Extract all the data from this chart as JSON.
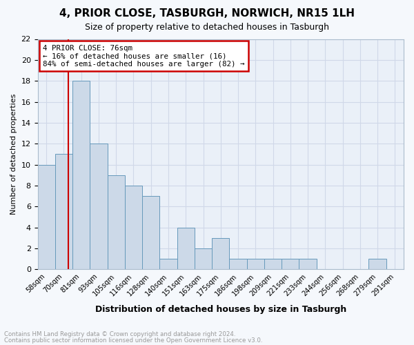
{
  "title": "4, PRIOR CLOSE, TASBURGH, NORWICH, NR15 1LH",
  "subtitle": "Size of property relative to detached houses in Tasburgh",
  "xlabel": "Distribution of detached houses by size in Tasburgh",
  "ylabel": "Number of detached properties",
  "bar_labels": [
    "58sqm",
    "70sqm",
    "81sqm",
    "93sqm",
    "105sqm",
    "116sqm",
    "128sqm",
    "140sqm",
    "151sqm",
    "163sqm",
    "175sqm",
    "186sqm",
    "198sqm",
    "209sqm",
    "221sqm",
    "233sqm",
    "244sqm",
    "256sqm",
    "268sqm",
    "279sqm",
    "291sqm"
  ],
  "bar_heights": [
    10,
    11,
    18,
    12,
    9,
    8,
    7,
    1,
    4,
    2,
    3,
    1,
    1,
    1,
    1,
    1,
    0,
    0,
    0,
    1,
    0
  ],
  "bar_color": "#ccd9e8",
  "bar_edge_color": "#6699bb",
  "grid_color": "#d0d8e8",
  "annotation_text": "4 PRIOR CLOSE: 76sqm\n← 16% of detached houses are smaller (16)\n84% of semi-detached houses are larger (82) →",
  "annotation_box_color": "#ffffff",
  "annotation_box_edge": "#cc0000",
  "red_line_x": 1.28,
  "ylim": [
    0,
    22
  ],
  "yticks": [
    0,
    2,
    4,
    6,
    8,
    10,
    12,
    14,
    16,
    18,
    20,
    22
  ],
  "footer1": "Contains HM Land Registry data © Crown copyright and database right 2024.",
  "footer2": "Contains public sector information licensed under the Open Government Licence v3.0.",
  "bg_color": "#f5f8fc",
  "plot_bg_color": "#eaf0f8"
}
